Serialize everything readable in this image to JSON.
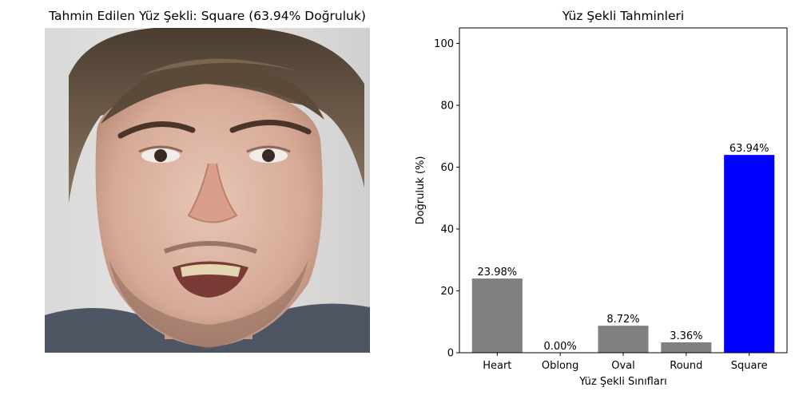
{
  "left_panel": {
    "title": "Tahmin Edilen Yüz Şekli: Square (63.94% Doğruluk)",
    "image": "face-photo"
  },
  "chart_data": {
    "type": "bar",
    "title": "Yüz Şekli Tahminleri",
    "xlabel": "Yüz Şekli Sınıfları",
    "ylabel": "Doğruluk (%)",
    "categories": [
      "Heart",
      "Oblong",
      "Oval",
      "Round",
      "Square"
    ],
    "values": [
      23.98,
      0.0,
      8.72,
      3.36,
      63.94
    ],
    "data_labels": [
      "23.98%",
      "0.00%",
      "8.72%",
      "3.36%",
      "63.94%"
    ],
    "colors": [
      "#808080",
      "#808080",
      "#808080",
      "#808080",
      "#0000ff"
    ],
    "ylim": [
      0,
      105
    ],
    "yticks": [
      0,
      20,
      40,
      60,
      80,
      100
    ],
    "grid": false,
    "legend": "none"
  }
}
